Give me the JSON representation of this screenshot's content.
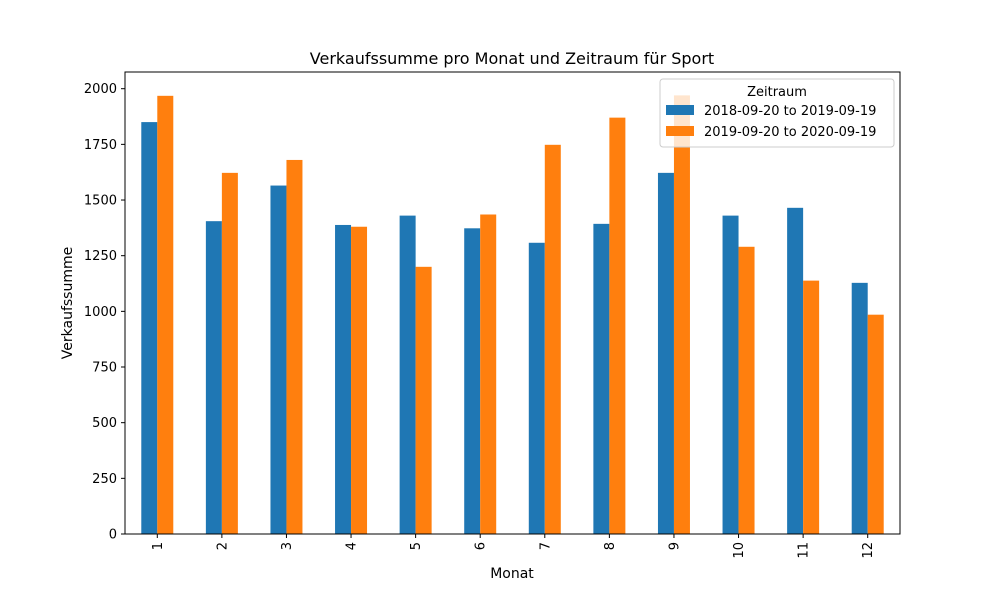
{
  "chart_data": {
    "type": "bar",
    "title": "Verkaufssumme pro Monat und Zeitraum für Sport",
    "xlabel": "Monat",
    "ylabel": "Verkaufssumme",
    "categories": [
      "1",
      "2",
      "3",
      "4",
      "5",
      "6",
      "7",
      "8",
      "9",
      "10",
      "11",
      "12"
    ],
    "ylim": [
      0,
      2075
    ],
    "yticks": [
      0,
      250,
      500,
      750,
      1000,
      1250,
      1500,
      1750,
      2000
    ],
    "grid": false,
    "legend": {
      "title": "Zeitraum",
      "placement": "top-right"
    },
    "series": [
      {
        "name": "2018-09-20 to 2019-09-19",
        "color": "#1f77b4",
        "values": [
          1850,
          1405,
          1565,
          1388,
          1430,
          1373,
          1308,
          1393,
          1622,
          1430,
          1465,
          1128
        ]
      },
      {
        "name": "2019-09-20 to 2020-09-19",
        "color": "#ff7f0e",
        "values": [
          1968,
          1622,
          1680,
          1380,
          1200,
          1435,
          1748,
          1870,
          1970,
          1290,
          1138,
          985
        ]
      }
    ]
  }
}
